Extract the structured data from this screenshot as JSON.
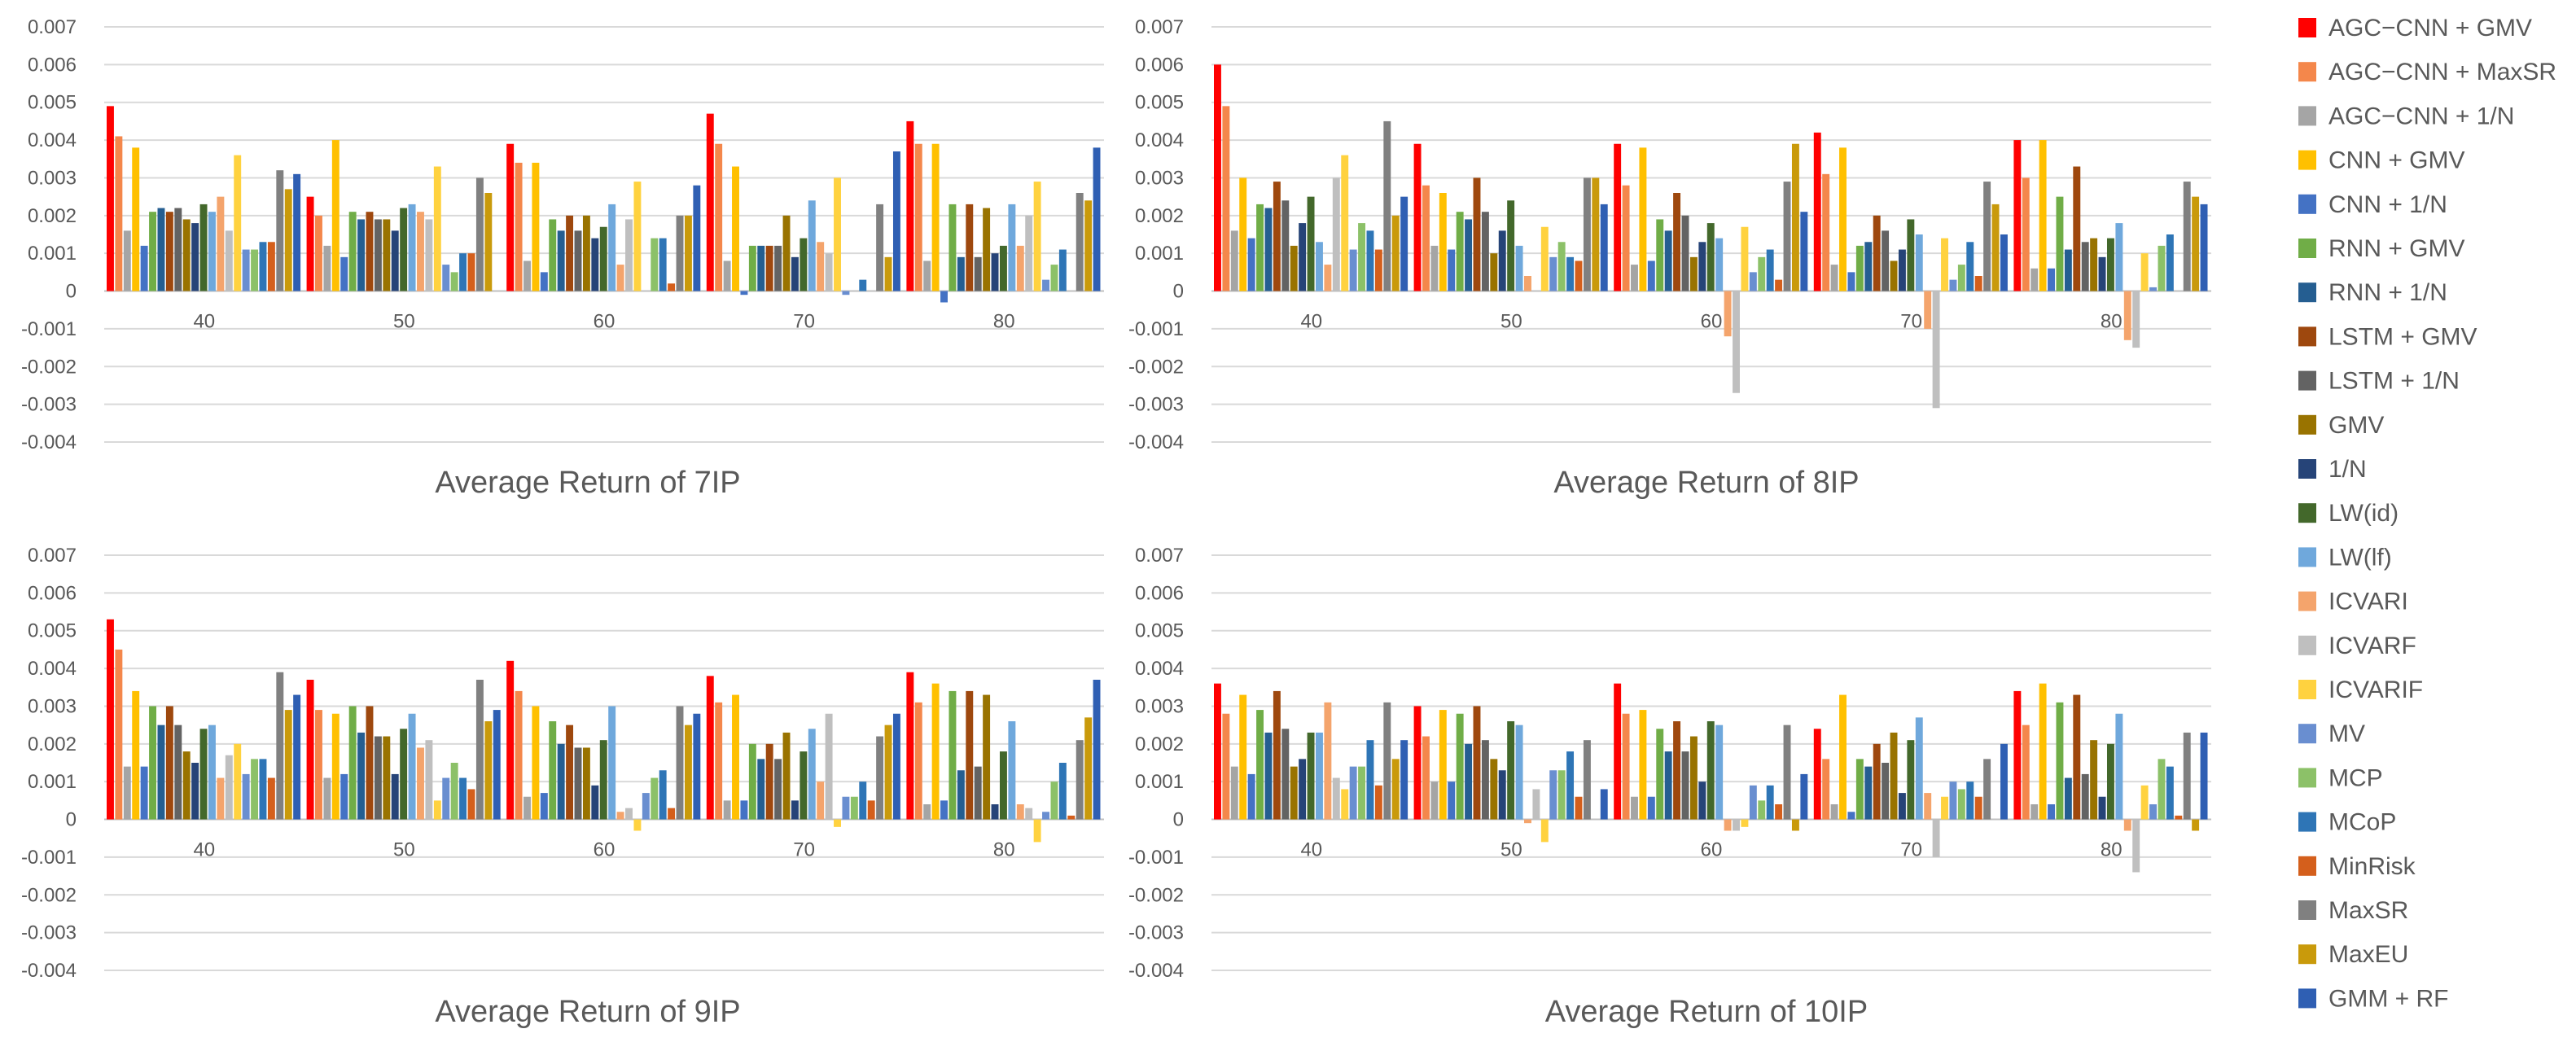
{
  "chart_data": {
    "type": "bar",
    "series_names": [
      "AGC−CNN + GMV",
      "AGC−CNN + MaxSR",
      "AGC−CNN + 1/N",
      "CNN + GMV",
      "CNN + 1/N",
      "RNN + GMV",
      "RNN + 1/N",
      "LSTM + GMV",
      "LSTM + 1/N",
      "GMV",
      "1/N",
      "LW(id)",
      "LW(lf)",
      "ICVARI",
      "ICVARF",
      "ICVARIF",
      "MV",
      "MCP",
      "MCoP",
      "MinRisk",
      "MaxSR",
      "MaxEU",
      "GMM + RF"
    ],
    "series_colors": [
      "#ff0000",
      "#f4874b",
      "#a5a5a5",
      "#ffc000",
      "#4472c4",
      "#70ad47",
      "#255e91",
      "#9e480e",
      "#636363",
      "#997300",
      "#264478",
      "#43682b",
      "#6fa8dc",
      "#f4a46c",
      "#bfbfbf",
      "#ffd23f",
      "#698ed0",
      "#8cc168",
      "#2e75b6",
      "#d45f1c",
      "#808080",
      "#c99a0b",
      "#2f5fb3"
    ],
    "categories": [
      "40",
      "50",
      "60",
      "70",
      "80"
    ],
    "yticks": [
      "0.007",
      "0.006",
      "0.005",
      "0.004",
      "0.003",
      "0.002",
      "0.001",
      "0",
      "-0.001",
      "-0.002",
      "-0.003",
      "-0.004"
    ],
    "ylim": [
      -0.004,
      0.007
    ],
    "charts": [
      {
        "title": "Average Return of 7IP",
        "values": [
          [
            0.0049,
            0.0041,
            0.0016,
            0.0038,
            0.0012,
            0.0021,
            0.0022,
            0.0021,
            0.0022,
            0.0019,
            0.0018,
            0.0023,
            0.0021,
            0.0025,
            0.0016,
            0.0036,
            0.0011,
            0.0011,
            0.0013,
            0.0013,
            0.0032,
            0.0027,
            0.0031
          ],
          [
            0.0025,
            0.002,
            0.0012,
            0.004,
            0.0009,
            0.0021,
            0.0019,
            0.0021,
            0.0019,
            0.0019,
            0.0016,
            0.0022,
            0.0023,
            0.0021,
            0.0019,
            0.0033,
            0.0007,
            0.0005,
            0.001,
            0.001,
            0.003,
            0.0026,
            0.0
          ],
          [
            0.0039,
            0.0034,
            0.0008,
            0.0034,
            0.0005,
            0.0019,
            0.0016,
            0.002,
            0.0016,
            0.002,
            0.0014,
            0.0017,
            0.0023,
            0.0007,
            0.0019,
            0.0029,
            0.0,
            0.0014,
            0.0014,
            0.0002,
            0.002,
            0.002,
            0.0028
          ],
          [
            0.0047,
            0.0039,
            0.0008,
            0.0033,
            -0.0001,
            0.0012,
            0.0012,
            0.0012,
            0.0012,
            0.002,
            0.0009,
            0.0014,
            0.0024,
            0.0013,
            0.001,
            0.003,
            -0.0001,
            0.0,
            0.0003,
            0.0,
            0.0023,
            0.0009,
            0.0037
          ],
          [
            0.0045,
            0.0039,
            0.0008,
            0.0039,
            -0.0003,
            0.0023,
            0.0009,
            0.0023,
            0.0009,
            0.0022,
            0.001,
            0.0012,
            0.0023,
            0.0012,
            0.002,
            0.0029,
            0.0003,
            0.0007,
            0.0011,
            0.0,
            0.0026,
            0.0024,
            0.0038
          ]
        ]
      },
      {
        "title": "Average Return of 8IP",
        "values": [
          [
            0.006,
            0.0049,
            0.0016,
            0.003,
            0.0014,
            0.0023,
            0.0022,
            0.0029,
            0.0024,
            0.0012,
            0.0018,
            0.0025,
            0.0013,
            0.0007,
            0.003,
            0.0036,
            0.0011,
            0.0018,
            0.0016,
            0.0011,
            0.0045,
            0.002,
            0.0025
          ],
          [
            0.0039,
            0.0028,
            0.0012,
            0.0026,
            0.0011,
            0.0021,
            0.0019,
            0.003,
            0.0021,
            0.001,
            0.0016,
            0.0024,
            0.0012,
            0.0004,
            0.0,
            0.0017,
            0.0009,
            0.0013,
            0.0009,
            0.0008,
            0.003,
            0.003,
            0.0023
          ],
          [
            0.0039,
            0.0028,
            0.0007,
            0.0038,
            0.0008,
            0.0019,
            0.0016,
            0.0026,
            0.002,
            0.0009,
            0.0013,
            0.0018,
            0.0014,
            -0.0012,
            -0.0027,
            0.0017,
            0.0005,
            0.0009,
            0.0011,
            0.0003,
            0.0029,
            0.0039,
            0.0021
          ],
          [
            0.0042,
            0.0031,
            0.0007,
            0.0038,
            0.0005,
            0.0012,
            0.0013,
            0.002,
            0.0016,
            0.0008,
            0.0011,
            0.0019,
            0.0015,
            -0.001,
            -0.0031,
            0.0014,
            0.0003,
            0.0007,
            0.0013,
            0.0004,
            0.0029,
            0.0023,
            0.0015
          ],
          [
            0.004,
            0.003,
            0.0006,
            0.004,
            0.0006,
            0.0025,
            0.0011,
            0.0033,
            0.0013,
            0.0014,
            0.0009,
            0.0014,
            0.0018,
            -0.0013,
            -0.0015,
            0.001,
            0.0001,
            0.0012,
            0.0015,
            0.0,
            0.0029,
            0.0025,
            0.0023
          ]
        ]
      },
      {
        "title": "Average Return of 9IP",
        "values": [
          [
            0.0053,
            0.0045,
            0.0014,
            0.0034,
            0.0014,
            0.003,
            0.0025,
            0.003,
            0.0025,
            0.0018,
            0.0015,
            0.0024,
            0.0025,
            0.0011,
            0.0017,
            0.002,
            0.0012,
            0.0016,
            0.0016,
            0.0011,
            0.0039,
            0.0029,
            0.0033
          ],
          [
            0.0037,
            0.0029,
            0.0011,
            0.0028,
            0.0012,
            0.003,
            0.0023,
            0.003,
            0.0022,
            0.0022,
            0.0012,
            0.0024,
            0.0028,
            0.0019,
            0.0021,
            0.0005,
            0.0011,
            0.0015,
            0.0011,
            0.0008,
            0.0037,
            0.0026,
            0.0029
          ],
          [
            0.0042,
            0.0034,
            0.0006,
            0.003,
            0.0007,
            0.0026,
            0.002,
            0.0025,
            0.0019,
            0.0019,
            0.0009,
            0.0021,
            0.003,
            0.0002,
            0.0003,
            -0.0003,
            0.0007,
            0.0011,
            0.0013,
            0.0003,
            0.003,
            0.0025,
            0.0028
          ],
          [
            0.0038,
            0.0031,
            0.0005,
            0.0033,
            0.0005,
            0.002,
            0.0016,
            0.002,
            0.0016,
            0.0023,
            0.0005,
            0.0018,
            0.0024,
            0.001,
            0.0028,
            -0.0002,
            0.0006,
            0.0006,
            0.001,
            0.0005,
            0.0022,
            0.0025,
            0.0028
          ],
          [
            0.0039,
            0.0031,
            0.0004,
            0.0036,
            0.0005,
            0.0034,
            0.0013,
            0.0034,
            0.0014,
            0.0033,
            0.0004,
            0.0018,
            0.0026,
            0.0004,
            0.0003,
            -0.0006,
            0.0002,
            0.001,
            0.0015,
            0.0001,
            0.0021,
            0.0027,
            0.0037
          ]
        ]
      },
      {
        "title": "Average Return of 10IP",
        "values": [
          [
            0.0036,
            0.0028,
            0.0014,
            0.0033,
            0.0012,
            0.0029,
            0.0023,
            0.0034,
            0.0024,
            0.0014,
            0.0016,
            0.0023,
            0.0023,
            0.0031,
            0.0011,
            0.0008,
            0.0014,
            0.0014,
            0.0021,
            0.0009,
            0.0031,
            0.0016,
            0.0021
          ],
          [
            0.003,
            0.0022,
            0.001,
            0.0029,
            0.001,
            0.0028,
            0.002,
            0.003,
            0.0021,
            0.0016,
            0.0013,
            0.0026,
            0.0025,
            -0.0001,
            0.0008,
            -0.0006,
            0.0013,
            0.0013,
            0.0018,
            0.0006,
            0.0021,
            0.0,
            0.0008
          ],
          [
            0.0036,
            0.0028,
            0.0006,
            0.0029,
            0.0006,
            0.0024,
            0.0018,
            0.0026,
            0.0018,
            0.0022,
            0.001,
            0.0026,
            0.0025,
            -0.0003,
            -0.0003,
            -0.0002,
            0.0009,
            0.0005,
            0.0009,
            0.0004,
            0.0025,
            -0.0003,
            0.0012
          ],
          [
            0.0024,
            0.0016,
            0.0004,
            0.0033,
            0.0002,
            0.0016,
            0.0014,
            0.002,
            0.0015,
            0.0023,
            0.0007,
            0.0021,
            0.0027,
            0.0007,
            -0.001,
            0.0006,
            0.001,
            0.0008,
            0.001,
            0.0006,
            0.0016,
            0.0,
            0.002
          ],
          [
            0.0034,
            0.0025,
            0.0004,
            0.0036,
            0.0004,
            0.0031,
            0.0011,
            0.0033,
            0.0012,
            0.0021,
            0.0006,
            0.002,
            0.0028,
            -0.0003,
            -0.0014,
            0.0009,
            0.0004,
            0.0016,
            0.0014,
            0.0001,
            0.0023,
            -0.0003,
            0.0023
          ]
        ]
      }
    ]
  }
}
